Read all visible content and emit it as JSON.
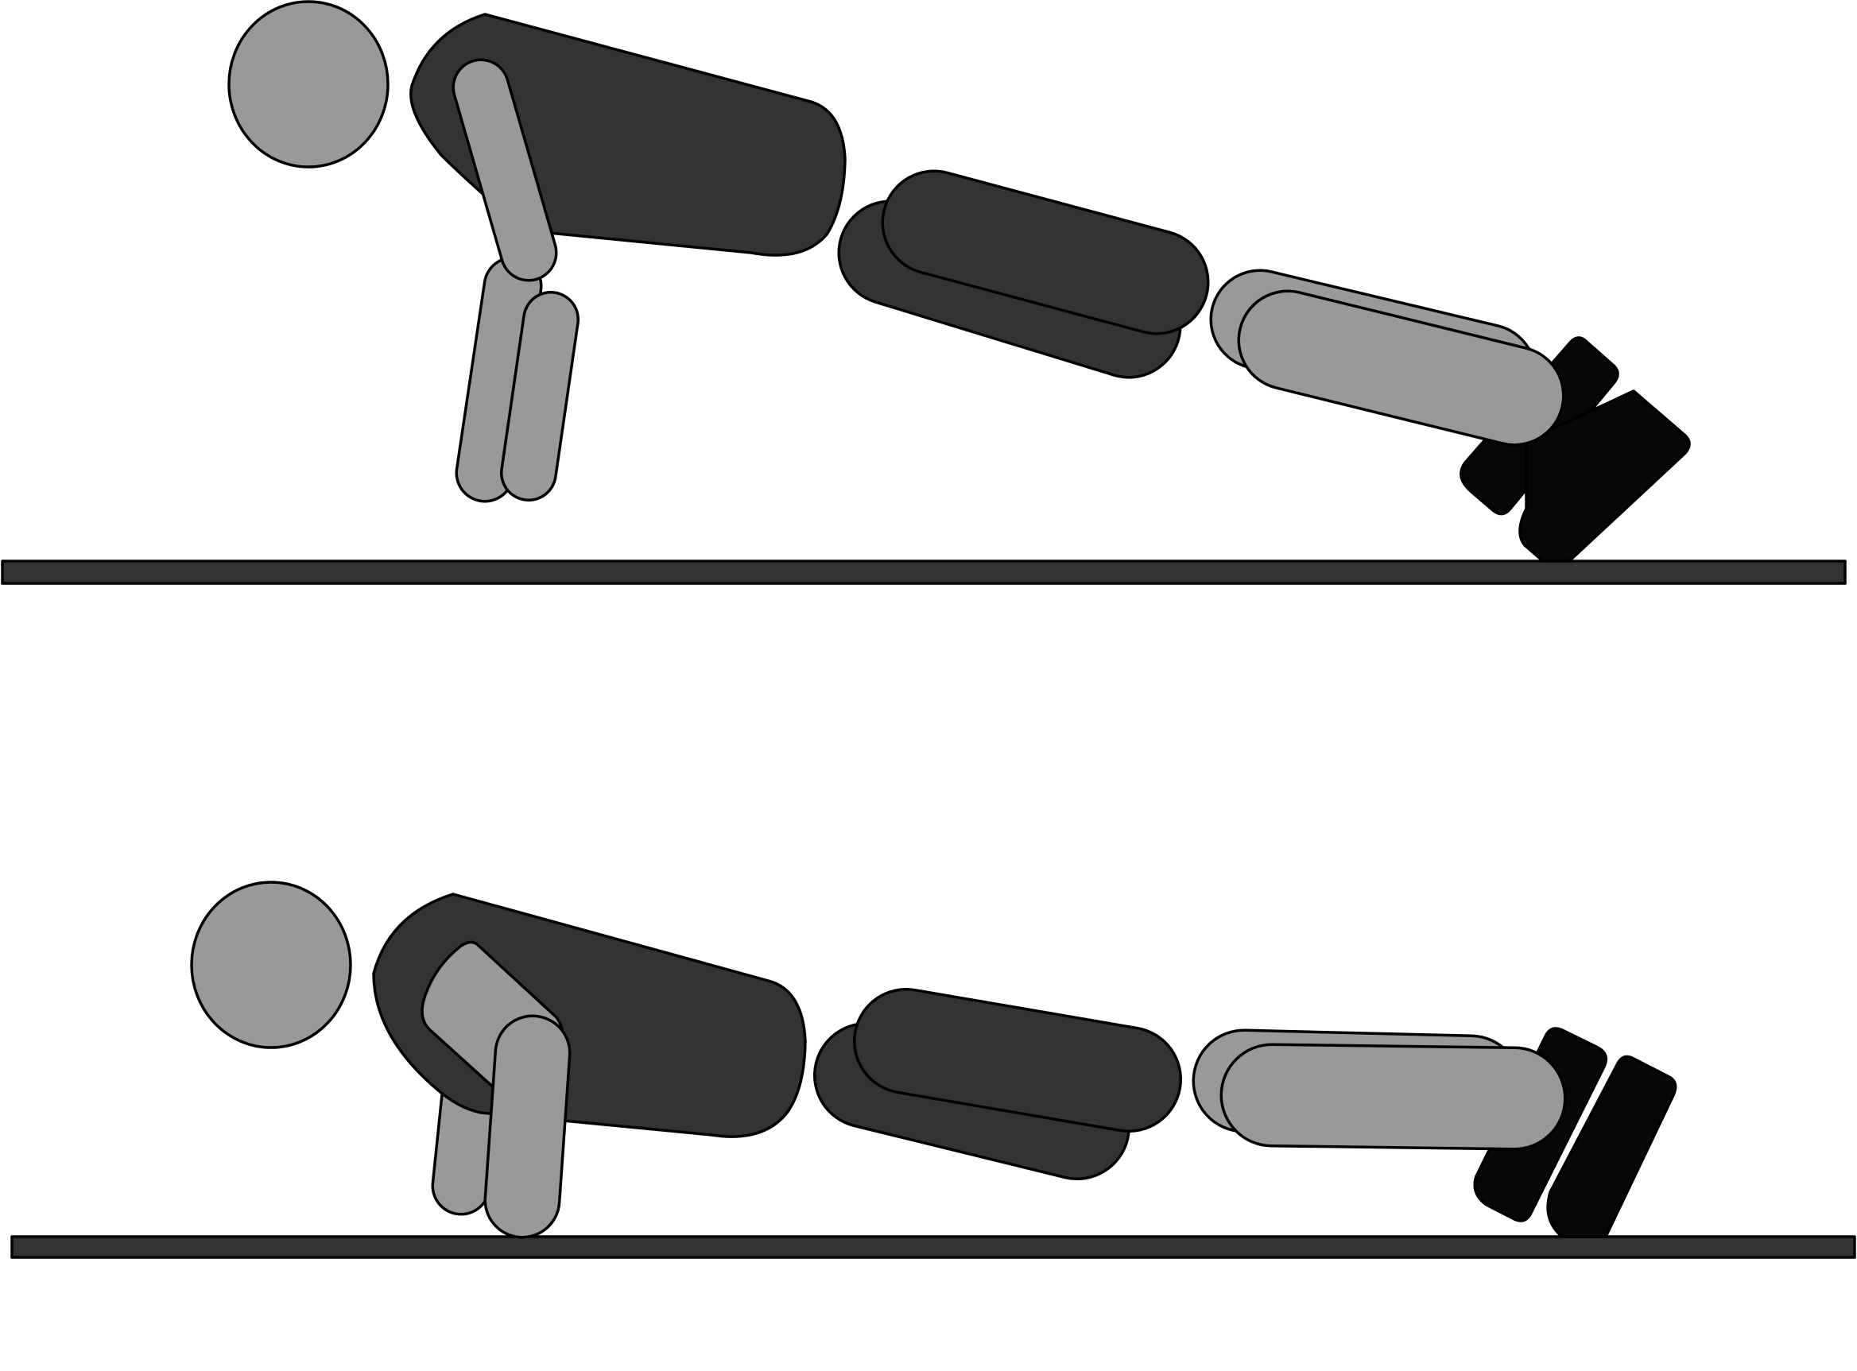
{
  "figure": {
    "panels": [
      "plank-position",
      "lowered-position"
    ]
  },
  "colors": {
    "background": "#ffffff",
    "body_dark": "#333333",
    "limb_gray": "#999999",
    "shoe_black": "#050708",
    "floor": "#333333",
    "outline": "#000000"
  }
}
